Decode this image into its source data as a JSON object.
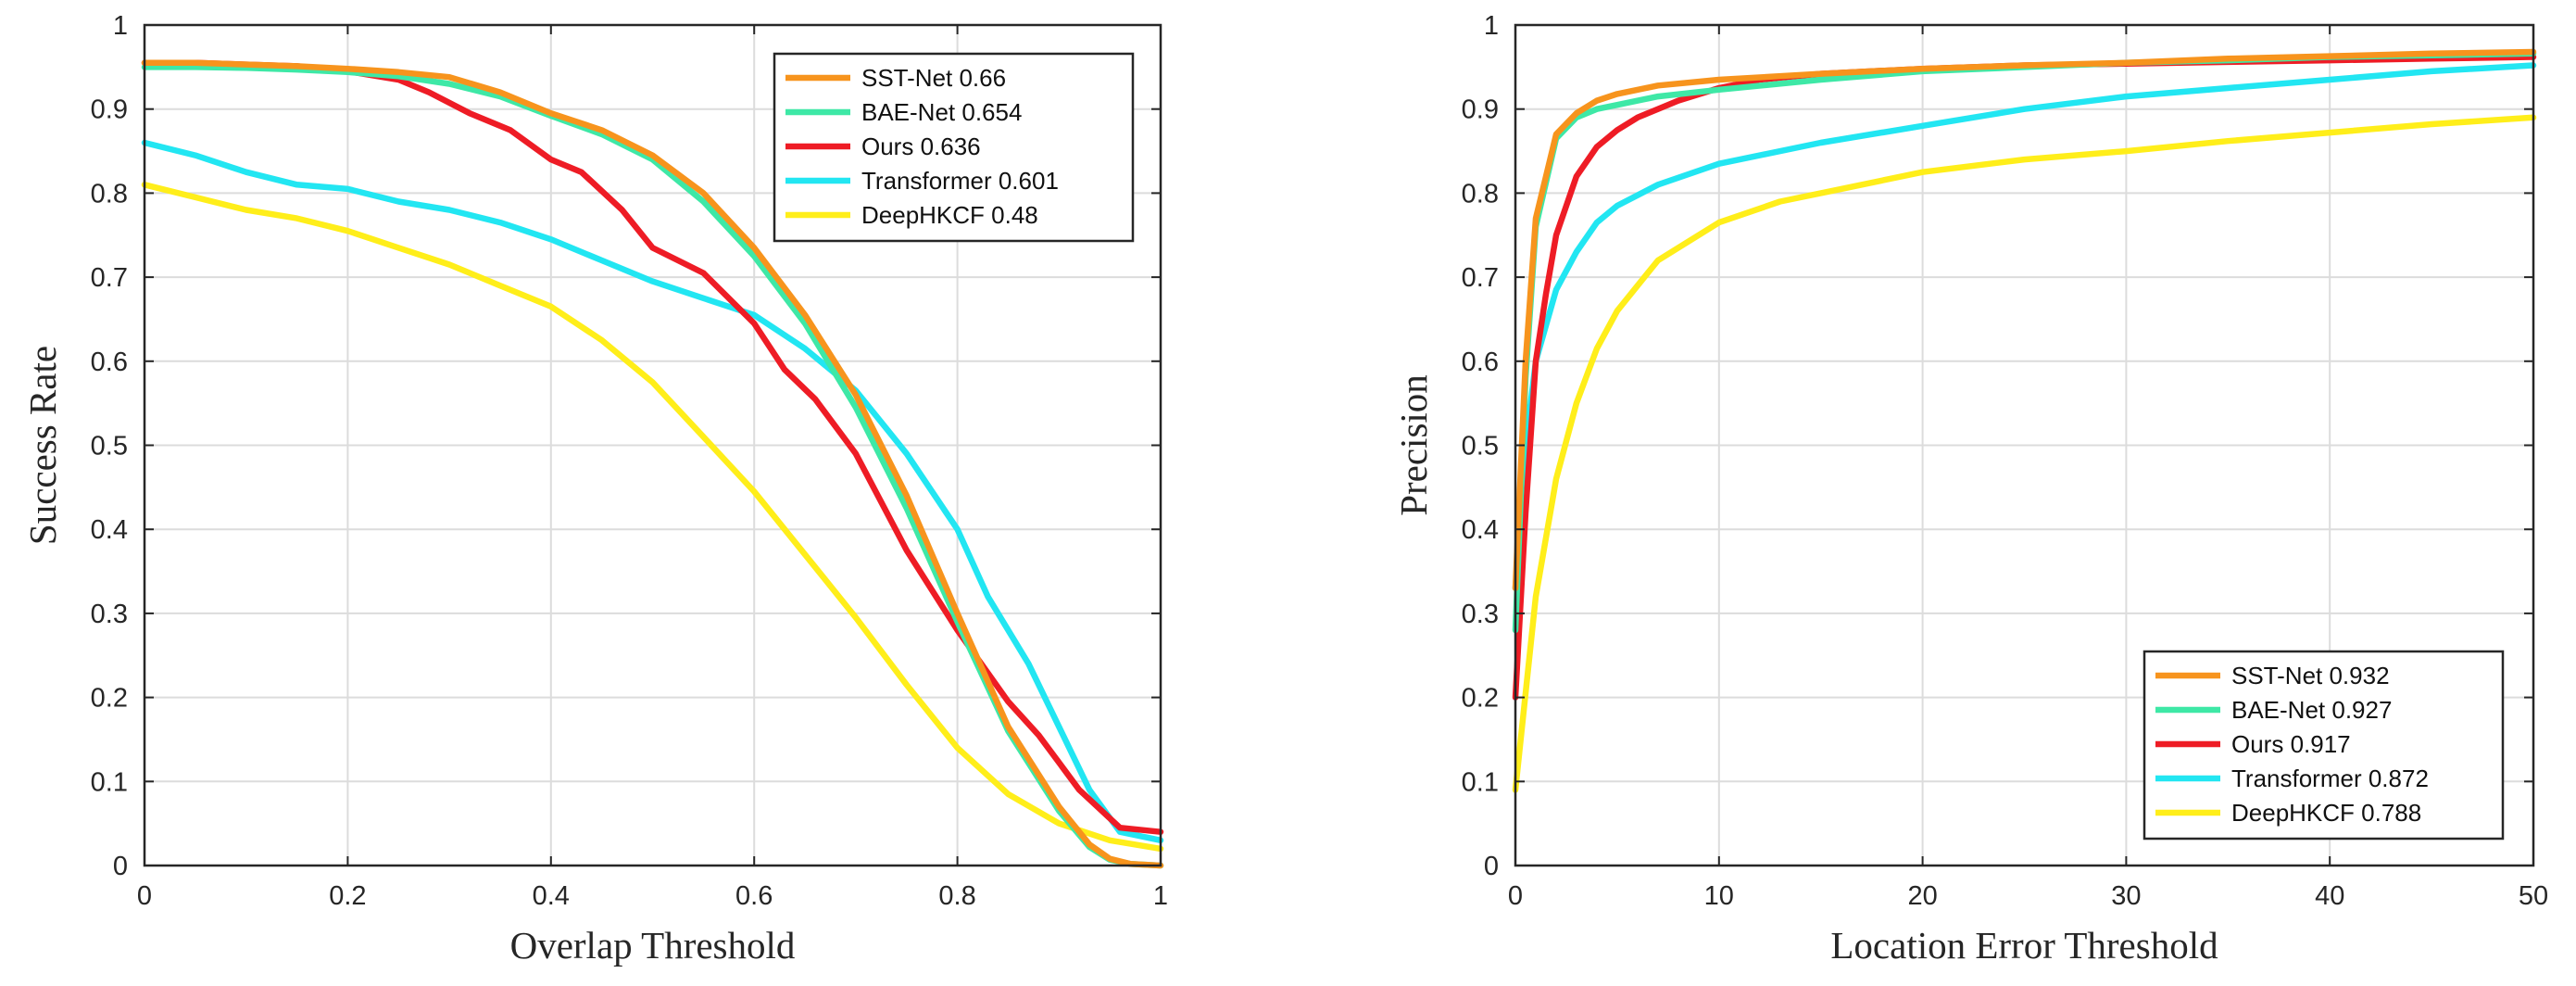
{
  "chart_data": [
    {
      "type": "line",
      "xlabel": "Overlap Threshold",
      "ylabel": "Success Rate",
      "xlim": [
        0,
        1
      ],
      "ylim": [
        0,
        1
      ],
      "xticks": [
        0,
        0.2,
        0.4,
        0.6,
        0.8,
        1
      ],
      "yticks": [
        0,
        0.1,
        0.2,
        0.3,
        0.4,
        0.5,
        0.6,
        0.7,
        0.8,
        0.9,
        1
      ],
      "grid": true,
      "legend_location": "top-right",
      "series": [
        {
          "name": "SST-Net",
          "score": "0.66",
          "color": "#f7941d",
          "x": [
            0,
            0.05,
            0.1,
            0.15,
            0.2,
            0.25,
            0.3,
            0.35,
            0.4,
            0.45,
            0.5,
            0.55,
            0.6,
            0.65,
            0.7,
            0.75,
            0.8,
            0.85,
            0.9,
            0.93,
            0.95,
            0.97,
            1
          ],
          "y": [
            0.955,
            0.955,
            0.953,
            0.951,
            0.948,
            0.944,
            0.938,
            0.92,
            0.895,
            0.875,
            0.845,
            0.8,
            0.735,
            0.655,
            0.56,
            0.44,
            0.3,
            0.165,
            0.07,
            0.025,
            0.008,
            0.002,
            0
          ]
        },
        {
          "name": "BAE-Net",
          "score": "0.654",
          "color": "#3ee8a6",
          "x": [
            0,
            0.05,
            0.1,
            0.15,
            0.2,
            0.25,
            0.3,
            0.35,
            0.4,
            0.45,
            0.5,
            0.55,
            0.6,
            0.65,
            0.7,
            0.75,
            0.8,
            0.85,
            0.9,
            0.93,
            0.95,
            0.97,
            1
          ],
          "y": [
            0.95,
            0.95,
            0.949,
            0.947,
            0.944,
            0.939,
            0.93,
            0.915,
            0.892,
            0.87,
            0.84,
            0.79,
            0.725,
            0.645,
            0.545,
            0.425,
            0.29,
            0.16,
            0.065,
            0.022,
            0.007,
            0.002,
            0
          ]
        },
        {
          "name": "Ours",
          "score": "0.636",
          "color": "#ee1c25",
          "x": [
            0,
            0.05,
            0.1,
            0.15,
            0.2,
            0.25,
            0.28,
            0.32,
            0.36,
            0.4,
            0.43,
            0.47,
            0.5,
            0.55,
            0.6,
            0.63,
            0.66,
            0.7,
            0.75,
            0.8,
            0.85,
            0.88,
            0.92,
            0.96,
            1
          ],
          "y": [
            0.955,
            0.955,
            0.953,
            0.951,
            0.945,
            0.935,
            0.92,
            0.895,
            0.875,
            0.84,
            0.825,
            0.78,
            0.735,
            0.705,
            0.645,
            0.59,
            0.555,
            0.49,
            0.375,
            0.28,
            0.195,
            0.155,
            0.09,
            0.045,
            0.04
          ]
        },
        {
          "name": "Transformer",
          "score": "0.601",
          "color": "#22e6f2",
          "x": [
            0,
            0.05,
            0.1,
            0.15,
            0.2,
            0.25,
            0.3,
            0.35,
            0.4,
            0.45,
            0.5,
            0.55,
            0.6,
            0.65,
            0.7,
            0.75,
            0.8,
            0.83,
            0.87,
            0.9,
            0.93,
            0.96,
            1
          ],
          "y": [
            0.86,
            0.845,
            0.825,
            0.81,
            0.805,
            0.79,
            0.78,
            0.765,
            0.745,
            0.72,
            0.695,
            0.675,
            0.655,
            0.615,
            0.565,
            0.49,
            0.4,
            0.32,
            0.24,
            0.165,
            0.09,
            0.04,
            0.03
          ]
        },
        {
          "name": "DeepHKCF",
          "score": "0.48",
          "color": "#ffee1a",
          "x": [
            0,
            0.05,
            0.1,
            0.15,
            0.2,
            0.25,
            0.3,
            0.35,
            0.4,
            0.45,
            0.5,
            0.55,
            0.6,
            0.65,
            0.7,
            0.75,
            0.8,
            0.85,
            0.9,
            0.95,
            1
          ],
          "y": [
            0.81,
            0.795,
            0.78,
            0.77,
            0.755,
            0.735,
            0.715,
            0.69,
            0.665,
            0.625,
            0.575,
            0.51,
            0.445,
            0.37,
            0.295,
            0.215,
            0.14,
            0.085,
            0.05,
            0.03,
            0.02
          ]
        }
      ]
    },
    {
      "type": "line",
      "xlabel": "Location Error Threshold",
      "ylabel": "Precision",
      "xlim": [
        0,
        50
      ],
      "ylim": [
        0,
        1
      ],
      "xticks": [
        0,
        10,
        20,
        30,
        40,
        50
      ],
      "yticks": [
        0,
        0.1,
        0.2,
        0.3,
        0.4,
        0.5,
        0.6,
        0.7,
        0.8,
        0.9,
        1
      ],
      "grid": true,
      "legend_location": "bottom-right",
      "series": [
        {
          "name": "SST-Net",
          "score": "0.932",
          "color": "#f7941d",
          "x": [
            0,
            0.5,
            1,
            2,
            3,
            4,
            5,
            7,
            10,
            15,
            20,
            25,
            30,
            35,
            40,
            45,
            50
          ],
          "y": [
            0.33,
            0.6,
            0.77,
            0.87,
            0.895,
            0.91,
            0.918,
            0.928,
            0.935,
            0.942,
            0.948,
            0.952,
            0.955,
            0.96,
            0.963,
            0.966,
            0.968
          ]
        },
        {
          "name": "BAE-Net",
          "score": "0.927",
          "color": "#3ee8a6",
          "x": [
            0,
            0.5,
            1,
            2,
            3,
            4,
            5,
            7,
            10,
            15,
            20,
            25,
            30,
            35,
            40,
            45,
            50
          ],
          "y": [
            0.28,
            0.58,
            0.76,
            0.865,
            0.89,
            0.9,
            0.905,
            0.915,
            0.923,
            0.935,
            0.945,
            0.95,
            0.955,
            0.958,
            0.962,
            0.964,
            0.966
          ]
        },
        {
          "name": "Ours",
          "score": "0.917",
          "color": "#ee1c25",
          "x": [
            0,
            0.5,
            1,
            1.5,
            2,
            3,
            4,
            5,
            6,
            8,
            10,
            12,
            15,
            20,
            25,
            30,
            35,
            40,
            45,
            50
          ],
          "y": [
            0.2,
            0.42,
            0.6,
            0.68,
            0.75,
            0.82,
            0.855,
            0.875,
            0.89,
            0.91,
            0.925,
            0.935,
            0.942,
            0.948,
            0.952,
            0.954,
            0.956,
            0.958,
            0.96,
            0.962
          ]
        },
        {
          "name": "Transformer",
          "score": "0.872",
          "color": "#22e6f2",
          "x": [
            0,
            0.5,
            1,
            2,
            3,
            4,
            5,
            7,
            10,
            15,
            20,
            25,
            30,
            35,
            40,
            45,
            50
          ],
          "y": [
            0.33,
            0.5,
            0.6,
            0.685,
            0.73,
            0.765,
            0.785,
            0.81,
            0.835,
            0.86,
            0.88,
            0.9,
            0.915,
            0.925,
            0.935,
            0.945,
            0.952
          ]
        },
        {
          "name": "DeepHKCF",
          "score": "0.788",
          "color": "#ffee1a",
          "x": [
            0,
            1,
            2,
            3,
            4,
            5,
            7,
            10,
            13,
            16,
            20,
            25,
            30,
            35,
            40,
            45,
            50
          ],
          "y": [
            0.09,
            0.32,
            0.46,
            0.55,
            0.615,
            0.66,
            0.72,
            0.765,
            0.79,
            0.805,
            0.825,
            0.84,
            0.85,
            0.862,
            0.872,
            0.882,
            0.89
          ]
        }
      ]
    }
  ]
}
